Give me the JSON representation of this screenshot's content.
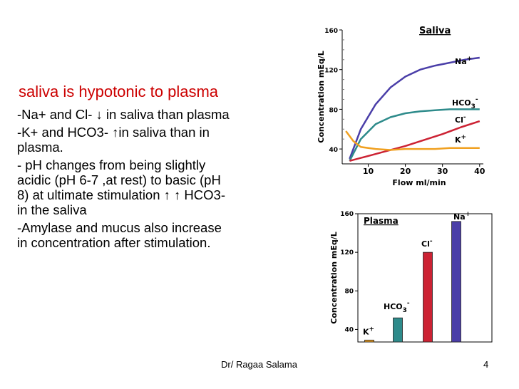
{
  "slide": {
    "heading": "saliva is hypotonic to plasma",
    "bullets": [
      {
        "lines": [
          "-Na+ and Cl- ↓ in saliva than plasma"
        ]
      },
      {
        "lines": [
          "-K+ and HCO3- ↑in saliva than in",
          " plasma."
        ]
      },
      {
        "lines": [
          "- pH changes from being slightly",
          " acidic  (pH 6-7 ,at rest) to basic (pH",
          " 8) at ultimate stimulation ↑ ↑ HCO3-",
          " in the saliva"
        ]
      },
      {
        "lines": [
          " -Amylase and mucus also increase",
          " in concentration after stimulation."
        ]
      }
    ],
    "footer_author": "Dr/ Ragaa Salama",
    "page_number": "4"
  },
  "chart_data": [
    {
      "type": "line",
      "title": "Saliva",
      "xlabel": "Flow ml/min",
      "ylabel": "Concentration mEq/L",
      "xticks": [
        "10",
        "20",
        "30",
        "40"
      ],
      "yticks": [
        "40",
        "80",
        "120",
        "160"
      ],
      "xlim": [
        3,
        41
      ],
      "ylim": [
        25,
        160
      ],
      "series": [
        {
          "name": "Na+",
          "label_main": "Na",
          "label_sup": "+",
          "color": "#4a3ea8",
          "x": [
            5,
            8,
            12,
            16,
            20,
            24,
            28,
            32,
            36,
            40
          ],
          "y": [
            30,
            60,
            85,
            102,
            113,
            120,
            124,
            127,
            130,
            132
          ]
        },
        {
          "name": "HCO3-",
          "label_main": "HCO",
          "label_sub": "3",
          "label_sup": "-",
          "color": "#2e8b8b",
          "x": [
            5,
            8,
            12,
            16,
            20,
            24,
            28,
            32,
            36,
            40
          ],
          "y": [
            28,
            50,
            65,
            72,
            76,
            78,
            79,
            80,
            80,
            80
          ]
        },
        {
          "name": "Cl-",
          "label_main": "Cl",
          "label_sup": "-",
          "color": "#cc2233",
          "x": [
            5,
            10,
            15,
            20,
            25,
            30,
            35,
            40
          ],
          "y": [
            28,
            33,
            38,
            43,
            49,
            55,
            62,
            68
          ]
        },
        {
          "name": "K+",
          "label_main": "K",
          "label_sup": "+",
          "color": "#f0a020",
          "x": [
            4,
            6,
            8,
            12,
            16,
            20,
            24,
            28,
            32,
            36,
            40
          ],
          "y": [
            58,
            48,
            42,
            40,
            39,
            40,
            40,
            40,
            41,
            41,
            41
          ]
        }
      ]
    },
    {
      "type": "bar",
      "title": "Plasma",
      "ylabel": "Concentration mEq/L",
      "yticks": [
        "40",
        "80",
        "120",
        "160"
      ],
      "ylim": [
        27,
        160
      ],
      "series": [
        {
          "name": "K+",
          "label_main": "K",
          "label_sup": "+",
          "value": 29,
          "color": "#f0a020"
        },
        {
          "name": "HCO3-",
          "label_main": "HCO",
          "label_sub": "3",
          "label_sup": "-",
          "value": 52,
          "color": "#2e8b8b"
        },
        {
          "name": "Cl-",
          "label_main": "Cl",
          "label_sup": "-",
          "value": 120,
          "color": "#cc2233"
        },
        {
          "name": "Na+",
          "label_main": "Na",
          "label_sup": "+",
          "value": 152,
          "color": "#4a3ea8"
        }
      ]
    }
  ]
}
